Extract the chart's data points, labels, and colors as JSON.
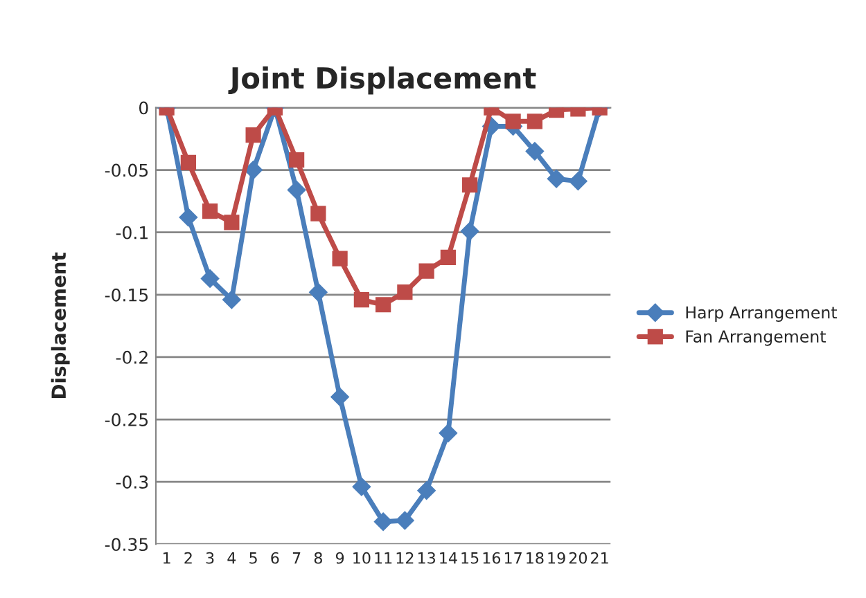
{
  "chart_data": {
    "type": "line",
    "title": "Joint Displacement",
    "ylabel": "Displacement",
    "categories": [
      "1",
      "2",
      "3",
      "4",
      "5",
      "6",
      "7",
      "8",
      "9",
      "10",
      "11",
      "12",
      "13",
      "14",
      "15",
      "16",
      "17",
      "18",
      "19",
      "20",
      "21"
    ],
    "series": [
      {
        "name": "Harp Arrangement",
        "color": "#4a7ebb",
        "marker": "diamond",
        "values": [
          0,
          -0.088,
          -0.137,
          -0.154,
          -0.05,
          0,
          -0.066,
          -0.148,
          -0.232,
          -0.304,
          -0.332,
          -0.331,
          -0.307,
          -0.261,
          -0.099,
          -0.015,
          -0.015,
          -0.035,
          -0.057,
          -0.059,
          0
        ]
      },
      {
        "name": "Fan Arrangement",
        "color": "#be4b48",
        "marker": "square",
        "values": [
          0,
          -0.044,
          -0.083,
          -0.092,
          -0.022,
          0,
          -0.042,
          -0.085,
          -0.121,
          -0.154,
          -0.158,
          -0.148,
          -0.131,
          -0.12,
          -0.062,
          0,
          -0.011,
          -0.011,
          -0.002,
          -0.001,
          0
        ]
      }
    ],
    "ylim": [
      -0.35,
      0
    ],
    "yticks": [
      0,
      -0.05,
      -0.1,
      -0.15,
      -0.2,
      -0.25,
      -0.3,
      -0.35
    ],
    "grid": "y",
    "legend": "right",
    "line_style": "solid"
  }
}
